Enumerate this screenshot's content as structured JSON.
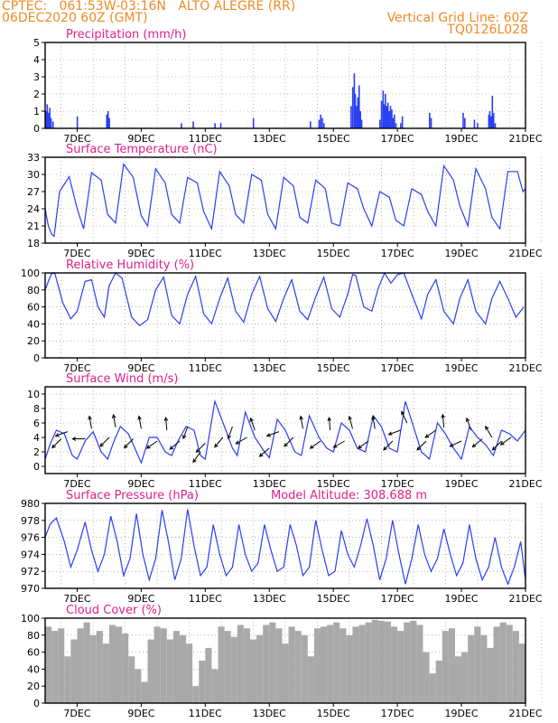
{
  "header": {
    "line1_left": "CPTEC:   061:53W-03:16N   ALTO ALEGRE (RR)",
    "line2_left": "06DEC2020 60Z (GMT)",
    "line1_right": "Vertical Grid Line: 60Z",
    "line2_right": "TQ0126L028",
    "model_altitude": "Model Altitude: 308.688 m"
  },
  "colors": {
    "header": "#f08a24",
    "title": "#e0208c",
    "series": "#2a3ff0",
    "cloud": "#a9a9a9",
    "arrow": "#000000",
    "grid": "#888888"
  },
  "chart_data": [
    {
      "id": "precip",
      "type": "bar",
      "title": "Precipitation (mm/h)",
      "xlabels": [
        "7DEC",
        "9DEC",
        "11DEC",
        "13DEC",
        "15DEC",
        "17DEC",
        "19DEC",
        "21DEC"
      ],
      "xlim": [
        6,
        21
      ],
      "ylim": [
        0,
        5
      ],
      "yticks": [
        0,
        1,
        2,
        3,
        4,
        5
      ],
      "grid": true,
      "x": [
        6.03,
        6.06,
        6.1,
        6.14,
        6.18,
        6.24,
        7.0,
        7.92,
        7.96,
        8.0,
        10.25,
        10.62,
        11.3,
        11.48,
        12.5,
        14.28,
        14.55,
        14.6,
        14.65,
        14.7,
        15.55,
        15.6,
        15.65,
        15.68,
        15.72,
        15.76,
        15.8,
        15.84,
        15.88,
        16.45,
        16.5,
        16.55,
        16.58,
        16.62,
        16.66,
        16.7,
        16.74,
        16.78,
        16.82,
        16.86,
        16.9,
        16.95,
        17.1,
        17.15,
        18.0,
        18.05,
        19.05,
        19.1,
        19.4,
        19.5,
        19.85,
        19.88,
        19.92,
        19.96,
        20.0,
        20.05
      ],
      "values": [
        1.0,
        1.4,
        0.9,
        1.2,
        0.6,
        0.4,
        0.7,
        0.8,
        1.0,
        0.6,
        0.3,
        0.4,
        0.3,
        0.3,
        0.6,
        0.4,
        0.5,
        0.8,
        0.6,
        0.3,
        1.3,
        2.4,
        3.2,
        2.0,
        1.3,
        1.8,
        2.5,
        1.0,
        0.5,
        0.5,
        1.6,
        2.2,
        1.4,
        2.0,
        1.3,
        1.5,
        1.0,
        1.3,
        1.1,
        0.6,
        0.8,
        0.3,
        0.3,
        0.7,
        0.9,
        0.6,
        0.9,
        0.6,
        0.5,
        0.3,
        0.8,
        1.0,
        0.7,
        1.9,
        0.9,
        0.3
      ]
    },
    {
      "id": "temp",
      "type": "line",
      "title": "Surface Temperature (nC)",
      "xlabels": [
        "7DEC",
        "9DEC",
        "11DEC",
        "13DEC",
        "15DEC",
        "17DEC",
        "19DEC",
        "21DEC"
      ],
      "xlim": [
        6,
        21
      ],
      "ylim": [
        18,
        33
      ],
      "yticks": [
        18,
        21,
        24,
        27,
        30,
        33
      ],
      "grid": true,
      "x": [
        6.0,
        6.1,
        6.2,
        6.28,
        6.45,
        6.75,
        7.0,
        7.2,
        7.45,
        7.75,
        7.95,
        8.2,
        8.45,
        8.75,
        9.0,
        9.2,
        9.45,
        9.75,
        9.95,
        10.2,
        10.45,
        10.75,
        10.95,
        11.2,
        11.45,
        11.75,
        11.95,
        12.2,
        12.45,
        12.75,
        12.95,
        13.2,
        13.45,
        13.75,
        13.95,
        14.2,
        14.45,
        14.75,
        14.95,
        15.2,
        15.45,
        15.75,
        15.95,
        16.2,
        16.45,
        16.75,
        16.95,
        17.2,
        17.45,
        17.75,
        17.95,
        18.2,
        18.45,
        18.75,
        18.95,
        19.2,
        19.45,
        19.75,
        19.95,
        20.2,
        20.45,
        20.75,
        20.92,
        21.0
      ],
      "values": [
        24,
        21,
        19.6,
        19.2,
        27,
        29.6,
        24,
        20.5,
        30.3,
        29,
        23,
        21.5,
        31.8,
        29.5,
        22.8,
        21,
        31,
        28.5,
        23,
        21.5,
        29.5,
        28.5,
        23.5,
        20.5,
        30.5,
        28,
        23,
        21.5,
        30,
        29,
        23,
        20.5,
        29.5,
        28,
        22.5,
        21.5,
        29,
        27.5,
        21.5,
        21,
        28.5,
        27.5,
        24,
        21,
        27,
        26,
        22,
        21,
        27.5,
        26.5,
        23.5,
        21,
        31.5,
        29,
        24.5,
        21,
        31,
        27.5,
        22.5,
        20.5,
        30.5,
        30.5,
        27,
        27.5
      ]
    },
    {
      "id": "rh",
      "type": "line",
      "title": "Relative Humidity (%)",
      "xlabels": [
        "7DEC",
        "9DEC",
        "11DEC",
        "13DEC",
        "15DEC",
        "17DEC",
        "19DEC",
        "21DEC"
      ],
      "xlim": [
        6,
        21
      ],
      "ylim": [
        0,
        100
      ],
      "yticks": [
        0,
        20,
        40,
        60,
        80,
        100
      ],
      "grid": true,
      "x": [
        6.0,
        6.1,
        6.2,
        6.3,
        6.55,
        6.8,
        7.0,
        7.25,
        7.45,
        7.65,
        7.85,
        8.0,
        8.2,
        8.4,
        8.7,
        8.95,
        9.2,
        9.45,
        9.7,
        9.95,
        10.2,
        10.45,
        10.7,
        10.95,
        11.2,
        11.45,
        11.7,
        11.95,
        12.2,
        12.45,
        12.7,
        12.95,
        13.2,
        13.45,
        13.7,
        13.95,
        14.2,
        14.45,
        14.7,
        14.95,
        15.2,
        15.45,
        15.6,
        15.7,
        15.95,
        16.2,
        16.4,
        16.6,
        16.8,
        17.0,
        17.2,
        17.45,
        17.75,
        17.95,
        18.2,
        18.45,
        18.75,
        18.95,
        19.2,
        19.45,
        19.75,
        19.95,
        20.2,
        20.45,
        20.7,
        20.95
      ],
      "values": [
        80,
        90,
        99,
        100,
        65,
        46,
        55,
        90,
        92,
        60,
        48,
        85,
        100,
        94,
        48,
        38,
        45,
        80,
        95,
        50,
        40,
        75,
        96,
        52,
        40,
        70,
        94,
        55,
        42,
        75,
        96,
        58,
        43,
        70,
        92,
        55,
        45,
        72,
        95,
        58,
        48,
        75,
        98,
        97,
        60,
        55,
        82,
        100,
        88,
        98,
        100,
        75,
        46,
        75,
        92,
        55,
        40,
        70,
        92,
        55,
        40,
        70,
        90,
        70,
        48,
        60
      ]
    },
    {
      "id": "wind",
      "type": "line",
      "title": "Surface Wind (m/s)",
      "xlabels": [
        "7DEC",
        "9DEC",
        "11DEC",
        "13DEC",
        "15DEC",
        "17DEC",
        "19DEC",
        "21DEC"
      ],
      "xlim": [
        6,
        21
      ],
      "ylim": [
        -1,
        11
      ],
      "yticks": [
        0,
        2,
        4,
        6,
        8,
        10
      ],
      "grid": true,
      "x": [
        6.0,
        6.15,
        6.35,
        6.6,
        6.85,
        7.0,
        7.25,
        7.5,
        7.75,
        7.95,
        8.15,
        8.35,
        8.6,
        8.85,
        9.0,
        9.25,
        9.5,
        9.75,
        9.95,
        10.15,
        10.4,
        10.65,
        10.85,
        11.0,
        11.3,
        11.6,
        11.85,
        12.0,
        12.25,
        12.55,
        12.85,
        13.0,
        13.25,
        13.5,
        13.8,
        14.0,
        14.25,
        14.55,
        14.8,
        15.0,
        15.25,
        15.5,
        15.75,
        16.0,
        16.25,
        16.5,
        16.75,
        17.0,
        17.25,
        17.5,
        17.75,
        18.0,
        18.25,
        18.5,
        18.75,
        19.0,
        19.25,
        19.5,
        19.75,
        20.0,
        20.25,
        20.5,
        20.75,
        21.0
      ],
      "values": [
        1.0,
        3.0,
        5.0,
        4.5,
        1.5,
        1.0,
        3.5,
        4.8,
        2.0,
        1.0,
        3.5,
        5.5,
        4.5,
        2.0,
        0.5,
        4.0,
        4.0,
        2.0,
        1.5,
        3.5,
        5.5,
        5.0,
        1.5,
        1.0,
        9.0,
        5.5,
        2.5,
        1.5,
        7.5,
        4.0,
        2.0,
        1.2,
        6.5,
        5.0,
        2.0,
        1.5,
        7.0,
        4.0,
        2.5,
        2.0,
        6.0,
        5.0,
        2.5,
        2.0,
        7.0,
        5.5,
        2.5,
        2.0,
        9.0,
        5.5,
        2.0,
        1.0,
        6.0,
        4.5,
        2.5,
        1.0,
        5.5,
        4.0,
        3.0,
        1.5,
        5.0,
        4.5,
        3.5,
        5.0
      ],
      "arrows": [
        {
          "x": 6.5,
          "y": 3.8,
          "dir": 225
        },
        {
          "x": 6.7,
          "y": 4.8,
          "dir": 200
        },
        {
          "x": 7.25,
          "y": 3.8,
          "dir": 180
        },
        {
          "x": 7.45,
          "y": 5.2,
          "dir": 100
        },
        {
          "x": 8.0,
          "y": 4.0,
          "dir": 225
        },
        {
          "x": 8.2,
          "y": 5.4,
          "dir": 100
        },
        {
          "x": 8.75,
          "y": 3.8,
          "dir": 225
        },
        {
          "x": 9.0,
          "y": 5.2,
          "dir": 100
        },
        {
          "x": 9.5,
          "y": 3.5,
          "dir": 215
        },
        {
          "x": 9.8,
          "y": 5.0,
          "dir": 95
        },
        {
          "x": 10.2,
          "y": 3.5,
          "dir": 220
        },
        {
          "x": 10.45,
          "y": 5.5,
          "dir": 250
        },
        {
          "x": 10.85,
          "y": 2.0,
          "dir": 235
        },
        {
          "x": 11.0,
          "y": 3.2,
          "dir": 225
        },
        {
          "x": 11.55,
          "y": 4.0,
          "dir": 230
        },
        {
          "x": 11.85,
          "y": 5.5,
          "dir": 250
        },
        {
          "x": 12.3,
          "y": 4.0,
          "dir": 210
        },
        {
          "x": 12.55,
          "y": 5.0,
          "dir": 110
        },
        {
          "x": 13.0,
          "y": 2.5,
          "dir": 220
        },
        {
          "x": 13.3,
          "y": 4.8,
          "dir": 200
        },
        {
          "x": 13.75,
          "y": 4.0,
          "dir": 225
        },
        {
          "x": 14.05,
          "y": 5.2,
          "dir": 100
        },
        {
          "x": 14.6,
          "y": 3.5,
          "dir": 215
        },
        {
          "x": 14.9,
          "y": 5.0,
          "dir": 95
        },
        {
          "x": 15.35,
          "y": 3.5,
          "dir": 210
        },
        {
          "x": 15.6,
          "y": 5.2,
          "dir": 105
        },
        {
          "x": 16.1,
          "y": 3.5,
          "dir": 215
        },
        {
          "x": 16.3,
          "y": 5.2,
          "dir": 100
        },
        {
          "x": 16.85,
          "y": 3.5,
          "dir": 225
        },
        {
          "x": 17.1,
          "y": 5.0,
          "dir": 200
        },
        {
          "x": 17.3,
          "y": 6.0,
          "dir": 115
        },
        {
          "x": 17.9,
          "y": 3.5,
          "dir": 225
        },
        {
          "x": 18.2,
          "y": 5.0,
          "dir": 215
        },
        {
          "x": 18.45,
          "y": 5.4,
          "dir": 95
        },
        {
          "x": 19.0,
          "y": 3.5,
          "dir": 205
        },
        {
          "x": 19.3,
          "y": 5.0,
          "dir": 110
        },
        {
          "x": 19.65,
          "y": 3.8,
          "dir": 220
        },
        {
          "x": 19.95,
          "y": 4.0,
          "dir": 120
        },
        {
          "x": 20.25,
          "y": 3.5,
          "dir": 225
        },
        {
          "x": 20.55,
          "y": 4.0,
          "dir": 215
        }
      ]
    },
    {
      "id": "pressure",
      "type": "line",
      "title": "Surface Pressure (hPa)",
      "xlabels": [
        "7DEC",
        "9DEC",
        "11DEC",
        "13DEC",
        "15DEC",
        "17DEC",
        "19DEC",
        "21DEC"
      ],
      "xlim": [
        6,
        21
      ],
      "ylim": [
        970,
        980
      ],
      "yticks": [
        970,
        972,
        974,
        976,
        978,
        980
      ],
      "grid": true,
      "x": [
        6.0,
        6.15,
        6.35,
        6.6,
        6.8,
        7.0,
        7.25,
        7.45,
        7.65,
        7.85,
        8.05,
        8.25,
        8.45,
        8.65,
        8.85,
        9.05,
        9.25,
        9.45,
        9.65,
        9.85,
        10.05,
        10.25,
        10.45,
        10.65,
        10.85,
        11.05,
        11.25,
        11.45,
        11.65,
        11.85,
        12.05,
        12.25,
        12.45,
        12.65,
        12.85,
        13.05,
        13.25,
        13.45,
        13.65,
        13.85,
        14.05,
        14.25,
        14.45,
        14.65,
        14.85,
        15.05,
        15.25,
        15.45,
        15.65,
        15.85,
        16.05,
        16.25,
        16.45,
        16.65,
        16.85,
        17.05,
        17.25,
        17.45,
        17.65,
        17.85,
        18.05,
        18.25,
        18.45,
        18.65,
        18.85,
        19.05,
        19.25,
        19.45,
        19.65,
        19.85,
        20.05,
        20.25,
        20.45,
        20.65,
        20.85,
        21.0
      ],
      "values": [
        976,
        977.5,
        978.3,
        975.5,
        972.5,
        974.5,
        977.8,
        974.5,
        972.0,
        974.0,
        978.5,
        975.5,
        971.5,
        973.5,
        978.8,
        974.0,
        971.0,
        973.5,
        979.2,
        975.5,
        971.0,
        973.5,
        979.3,
        975.0,
        971.5,
        972.5,
        977.5,
        974.0,
        971.5,
        972.5,
        977.5,
        974.0,
        972.0,
        973.0,
        977.5,
        974.5,
        972.0,
        972.5,
        977.5,
        975.0,
        971.5,
        972.5,
        978.0,
        974.5,
        971.5,
        972.0,
        976.8,
        974.0,
        972.5,
        975.0,
        978.2,
        975.0,
        971.0,
        973.5,
        978.0,
        974.0,
        970.5,
        973.5,
        977.5,
        974.0,
        972.0,
        973.5,
        977.0,
        974.0,
        971.5,
        973.0,
        977.5,
        973.5,
        971.0,
        972.5,
        976.0,
        972.5,
        970.5,
        972.5,
        975.5,
        971.0
      ]
    },
    {
      "id": "cloud",
      "type": "area",
      "title": "Cloud Cover (%)",
      "xlabels": [
        "7DEC",
        "9DEC",
        "11DEC",
        "13DEC",
        "15DEC",
        "17DEC",
        "19DEC",
        "21DEC"
      ],
      "xlim": [
        6,
        21
      ],
      "ylim": [
        0,
        100
      ],
      "yticks": [
        0,
        20,
        40,
        60,
        80,
        100
      ],
      "grid": true,
      "x": [
        6.0,
        6.2,
        6.4,
        6.6,
        6.8,
        7.0,
        7.2,
        7.4,
        7.6,
        7.8,
        8.0,
        8.2,
        8.4,
        8.6,
        8.8,
        9.0,
        9.2,
        9.4,
        9.6,
        9.8,
        10.0,
        10.2,
        10.4,
        10.6,
        10.8,
        11.0,
        11.2,
        11.4,
        11.6,
        11.8,
        12.0,
        12.2,
        12.4,
        12.6,
        12.8,
        13.0,
        13.2,
        13.4,
        13.6,
        13.8,
        14.0,
        14.2,
        14.4,
        14.6,
        14.8,
        15.0,
        15.2,
        15.4,
        15.6,
        15.8,
        16.0,
        16.2,
        16.4,
        16.6,
        16.8,
        17.0,
        17.2,
        17.4,
        17.6,
        17.8,
        18.0,
        18.2,
        18.4,
        18.6,
        18.8,
        19.0,
        19.2,
        19.4,
        19.6,
        19.8,
        20.0,
        20.2,
        20.4,
        20.6,
        20.8,
        21.0
      ],
      "values": [
        90,
        85,
        88,
        55,
        75,
        88,
        95,
        80,
        85,
        70,
        92,
        90,
        82,
        55,
        40,
        25,
        75,
        90,
        88,
        75,
        85,
        80,
        70,
        20,
        50,
        65,
        40,
        90,
        85,
        78,
        92,
        88,
        75,
        80,
        92,
        95,
        88,
        70,
        90,
        85,
        80,
        55,
        88,
        90,
        92,
        95,
        88,
        80,
        90,
        92,
        95,
        98,
        97,
        96,
        90,
        85,
        95,
        97,
        92,
        60,
        35,
        50,
        85,
        88,
        55,
        60,
        80,
        90,
        80,
        65,
        90,
        95,
        92,
        85,
        70,
        50
      ]
    }
  ]
}
